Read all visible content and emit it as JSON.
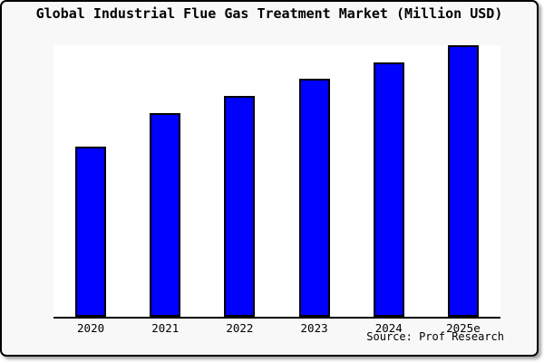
{
  "title": "Global Industrial Flue Gas Treatment Market (Million USD)",
  "source_note": "Source: Prof Research",
  "colors": {
    "bar_fill": "#0000ff",
    "bar_edge": "#000000",
    "card_background": "#f8f8f8",
    "plot_background": "#ffffff",
    "border": "#000000",
    "text": "#000000"
  },
  "chart_data": {
    "type": "bar",
    "title": "Global Industrial Flue Gas Treatment Market (Million USD)",
    "categories": [
      "2020",
      "2021",
      "2022",
      "2023",
      "2024",
      "2025e"
    ],
    "values": [
      62.7,
      75.0,
      81.3,
      87.7,
      93.7,
      100.0
    ],
    "xlabel": "",
    "ylabel": "",
    "ylim": [
      0,
      100
    ],
    "grid": false,
    "legend": "none",
    "y_axis_labels_visible": false,
    "note": "Y axis has no tick labels in the image; values are relative estimates from bar heights with 2025e = 100"
  }
}
